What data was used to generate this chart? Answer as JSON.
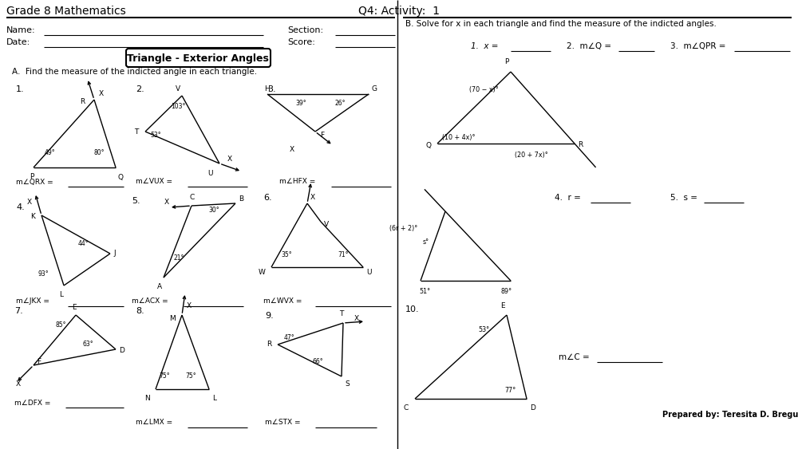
{
  "title_left": "Grade 8 Mathematics",
  "title_right": "Q4: Activity:  1",
  "bg_color": "#ffffff",
  "section_A_title": "Triangle - Exterior Angles",
  "section_A_instruction": "A.  Find the measure of the indicted angle in each triangle.",
  "section_B_instruction": "B. Solve for x in each triangle and find the measure of the indicted angles."
}
